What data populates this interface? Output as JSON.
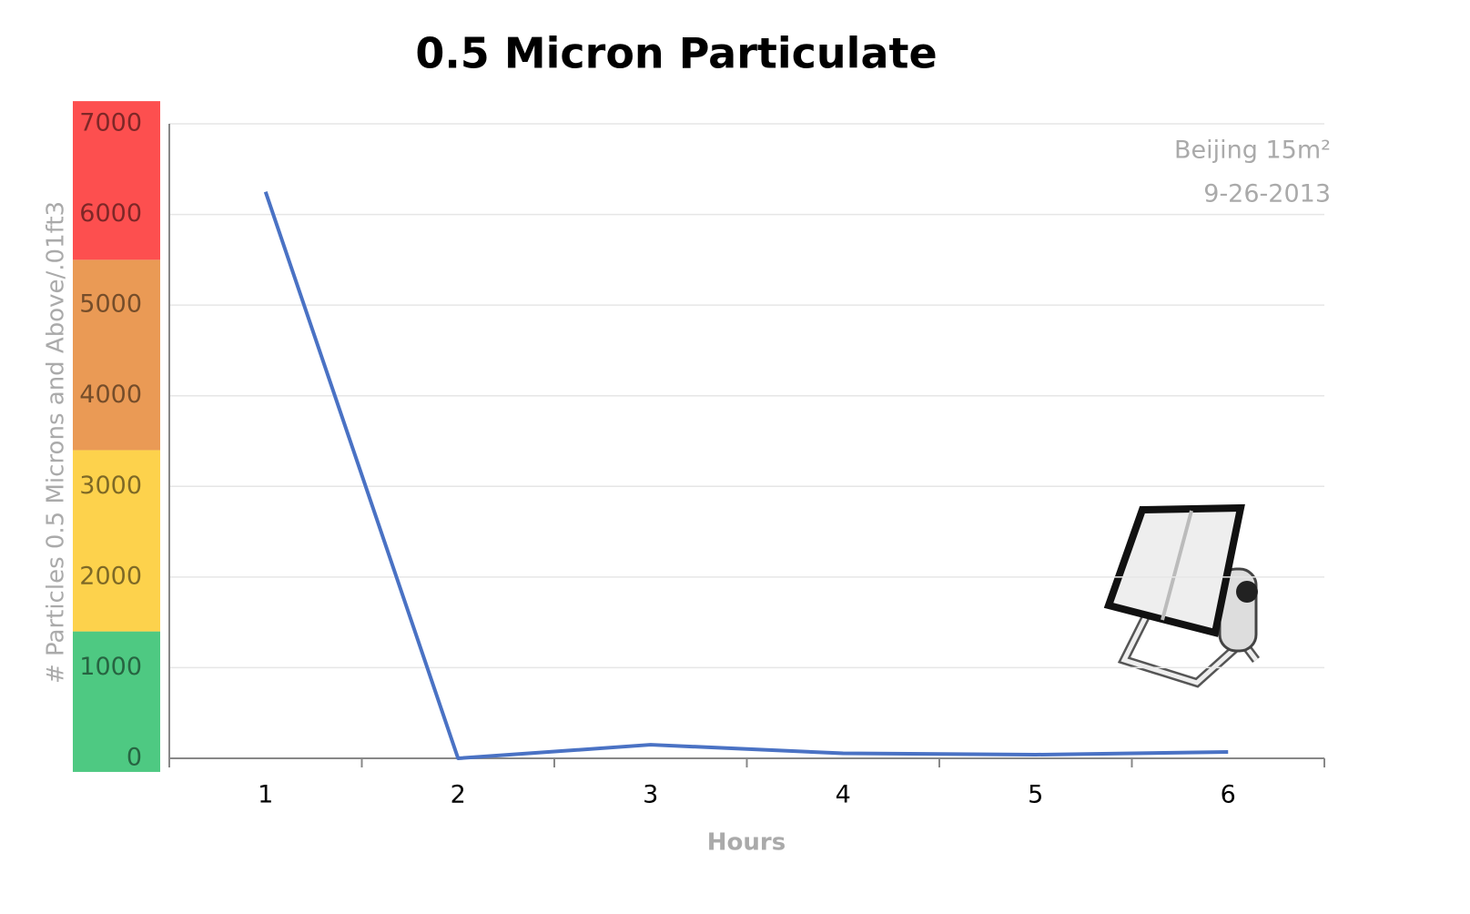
{
  "chart_data": {
    "type": "line",
    "title": "0.5 Micron Particulate",
    "x_label": "Hours",
    "y_label": "# Particles 0.5 Microns and Above/.01ft3",
    "annotations": [
      "Beijing 15m²",
      "9-26-2013"
    ],
    "categories": [
      "1",
      "2",
      "3",
      "4",
      "5",
      "6"
    ],
    "series": [
      {
        "name": "0.5 Micron",
        "color": "#4a72c4",
        "values": [
          6250,
          0,
          150,
          55,
          40,
          70
        ]
      }
    ],
    "ylim": [
      0,
      7000
    ],
    "yticks": [
      0,
      1000,
      2000,
      3000,
      4000,
      5000,
      6000,
      7000
    ],
    "grid": true,
    "bands": [
      {
        "from": -150,
        "to": 1400,
        "color": "#4ec982"
      },
      {
        "from": 1400,
        "to": 3400,
        "color": "#fdd24c"
      },
      {
        "from": 3400,
        "to": 5500,
        "color": "#ea9a55"
      },
      {
        "from": 5500,
        "to": 7250,
        "color": "#fd4f4f"
      }
    ]
  }
}
